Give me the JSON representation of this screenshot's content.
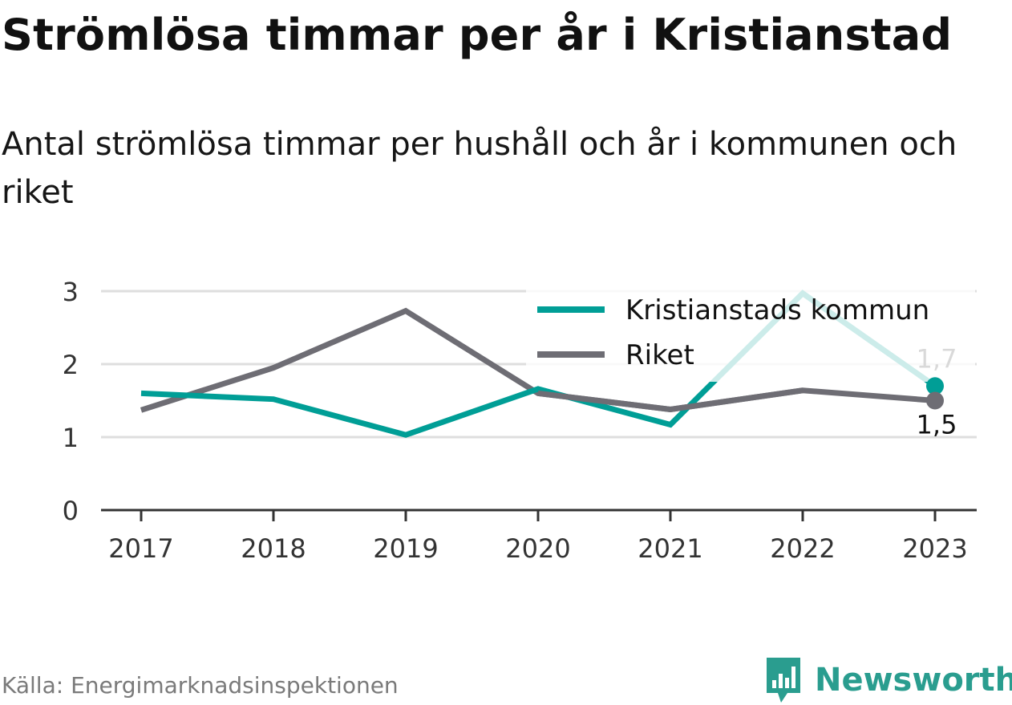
{
  "title": "Strömlösa timmar per år i Kristianstad",
  "subtitle": "Antal strömlösa timmar per hushåll och år i kommunen och riket",
  "source": "Källa: Energimarknadsinspektionen",
  "brand": "Newsworthy",
  "colors": {
    "kommun": "#009e96",
    "riket": "#6e6d74",
    "grid": "#dedede",
    "axis": "#333333"
  },
  "chart_data": {
    "type": "line",
    "x": [
      "2017",
      "2018",
      "2019",
      "2020",
      "2021",
      "2022",
      "2023"
    ],
    "ylim": [
      0,
      3
    ],
    "yticks": [
      "0",
      "1",
      "2",
      "3"
    ],
    "grid": true,
    "legend_position": "top-right",
    "series": [
      {
        "name": "Kristianstads kommun",
        "values": [
          1.6,
          1.52,
          1.03,
          1.66,
          1.17,
          2.97,
          1.7
        ],
        "end_label": "1,7"
      },
      {
        "name": "Riket",
        "values": [
          1.37,
          1.95,
          2.73,
          1.6,
          1.38,
          1.64,
          1.5
        ],
        "end_label": "1,5"
      }
    ]
  }
}
